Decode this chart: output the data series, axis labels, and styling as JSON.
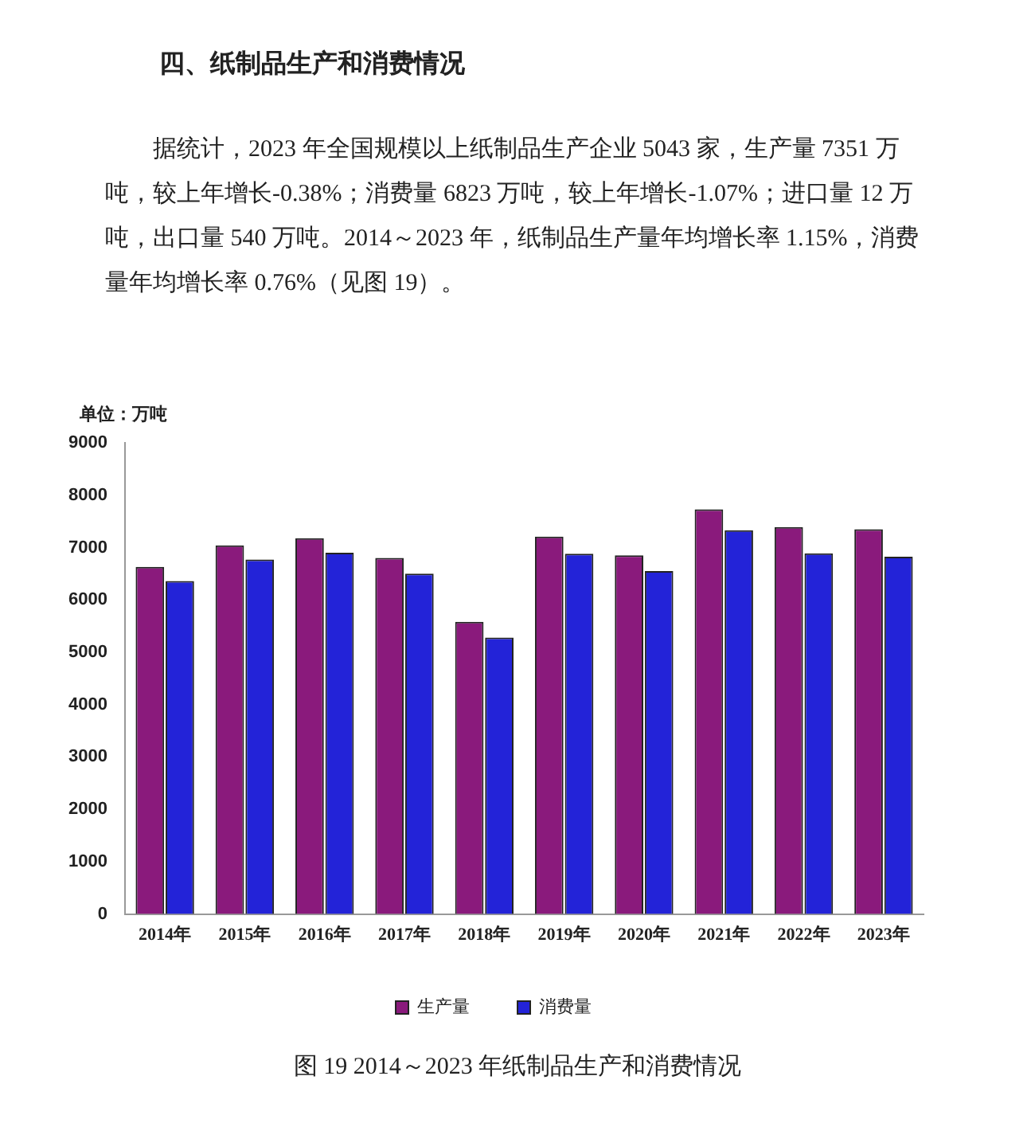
{
  "chart_data": {
    "type": "bar",
    "title": "图 19 2014～2023 年纸制品生产和消费情况",
    "ylabel": "单位：万吨",
    "annotations": [
      "四、纸制品生产和消费情况",
      "据统计，2023 年全国规模以上纸制品生产企业 5043 家，生产量 7351 万吨，较上年增长-0.38%；消费量 6823 万吨，较上年增长-1.07%；进口量 12 万吨，出口量 540 万吨。2014～2023 年，纸制品生产量年均增长率 1.15%，消费量年均增长率 0.76%（见图 19）。"
    ],
    "categories": [
      "2014年",
      "2015年",
      "2016年",
      "2017年",
      "2018年",
      "2019年",
      "2020年",
      "2021年",
      "2022年",
      "2023年"
    ],
    "series": [
      {
        "name": "生产量",
        "color": "#8a1a7c",
        "values": [
          6630,
          7040,
          7180,
          6800,
          5580,
          7210,
          6850,
          7730,
          7390,
          7351
        ]
      },
      {
        "name": "消费量",
        "color": "#2323d8",
        "values": [
          6360,
          6770,
          6900,
          6500,
          5280,
          6880,
          6550,
          7330,
          6890,
          6823
        ]
      }
    ],
    "ylim": [
      0,
      9000
    ],
    "yticks": [
      0,
      1000,
      2000,
      3000,
      4000,
      5000,
      6000,
      7000,
      8000,
      9000
    ],
    "grid": false,
    "legend": "bottom"
  }
}
